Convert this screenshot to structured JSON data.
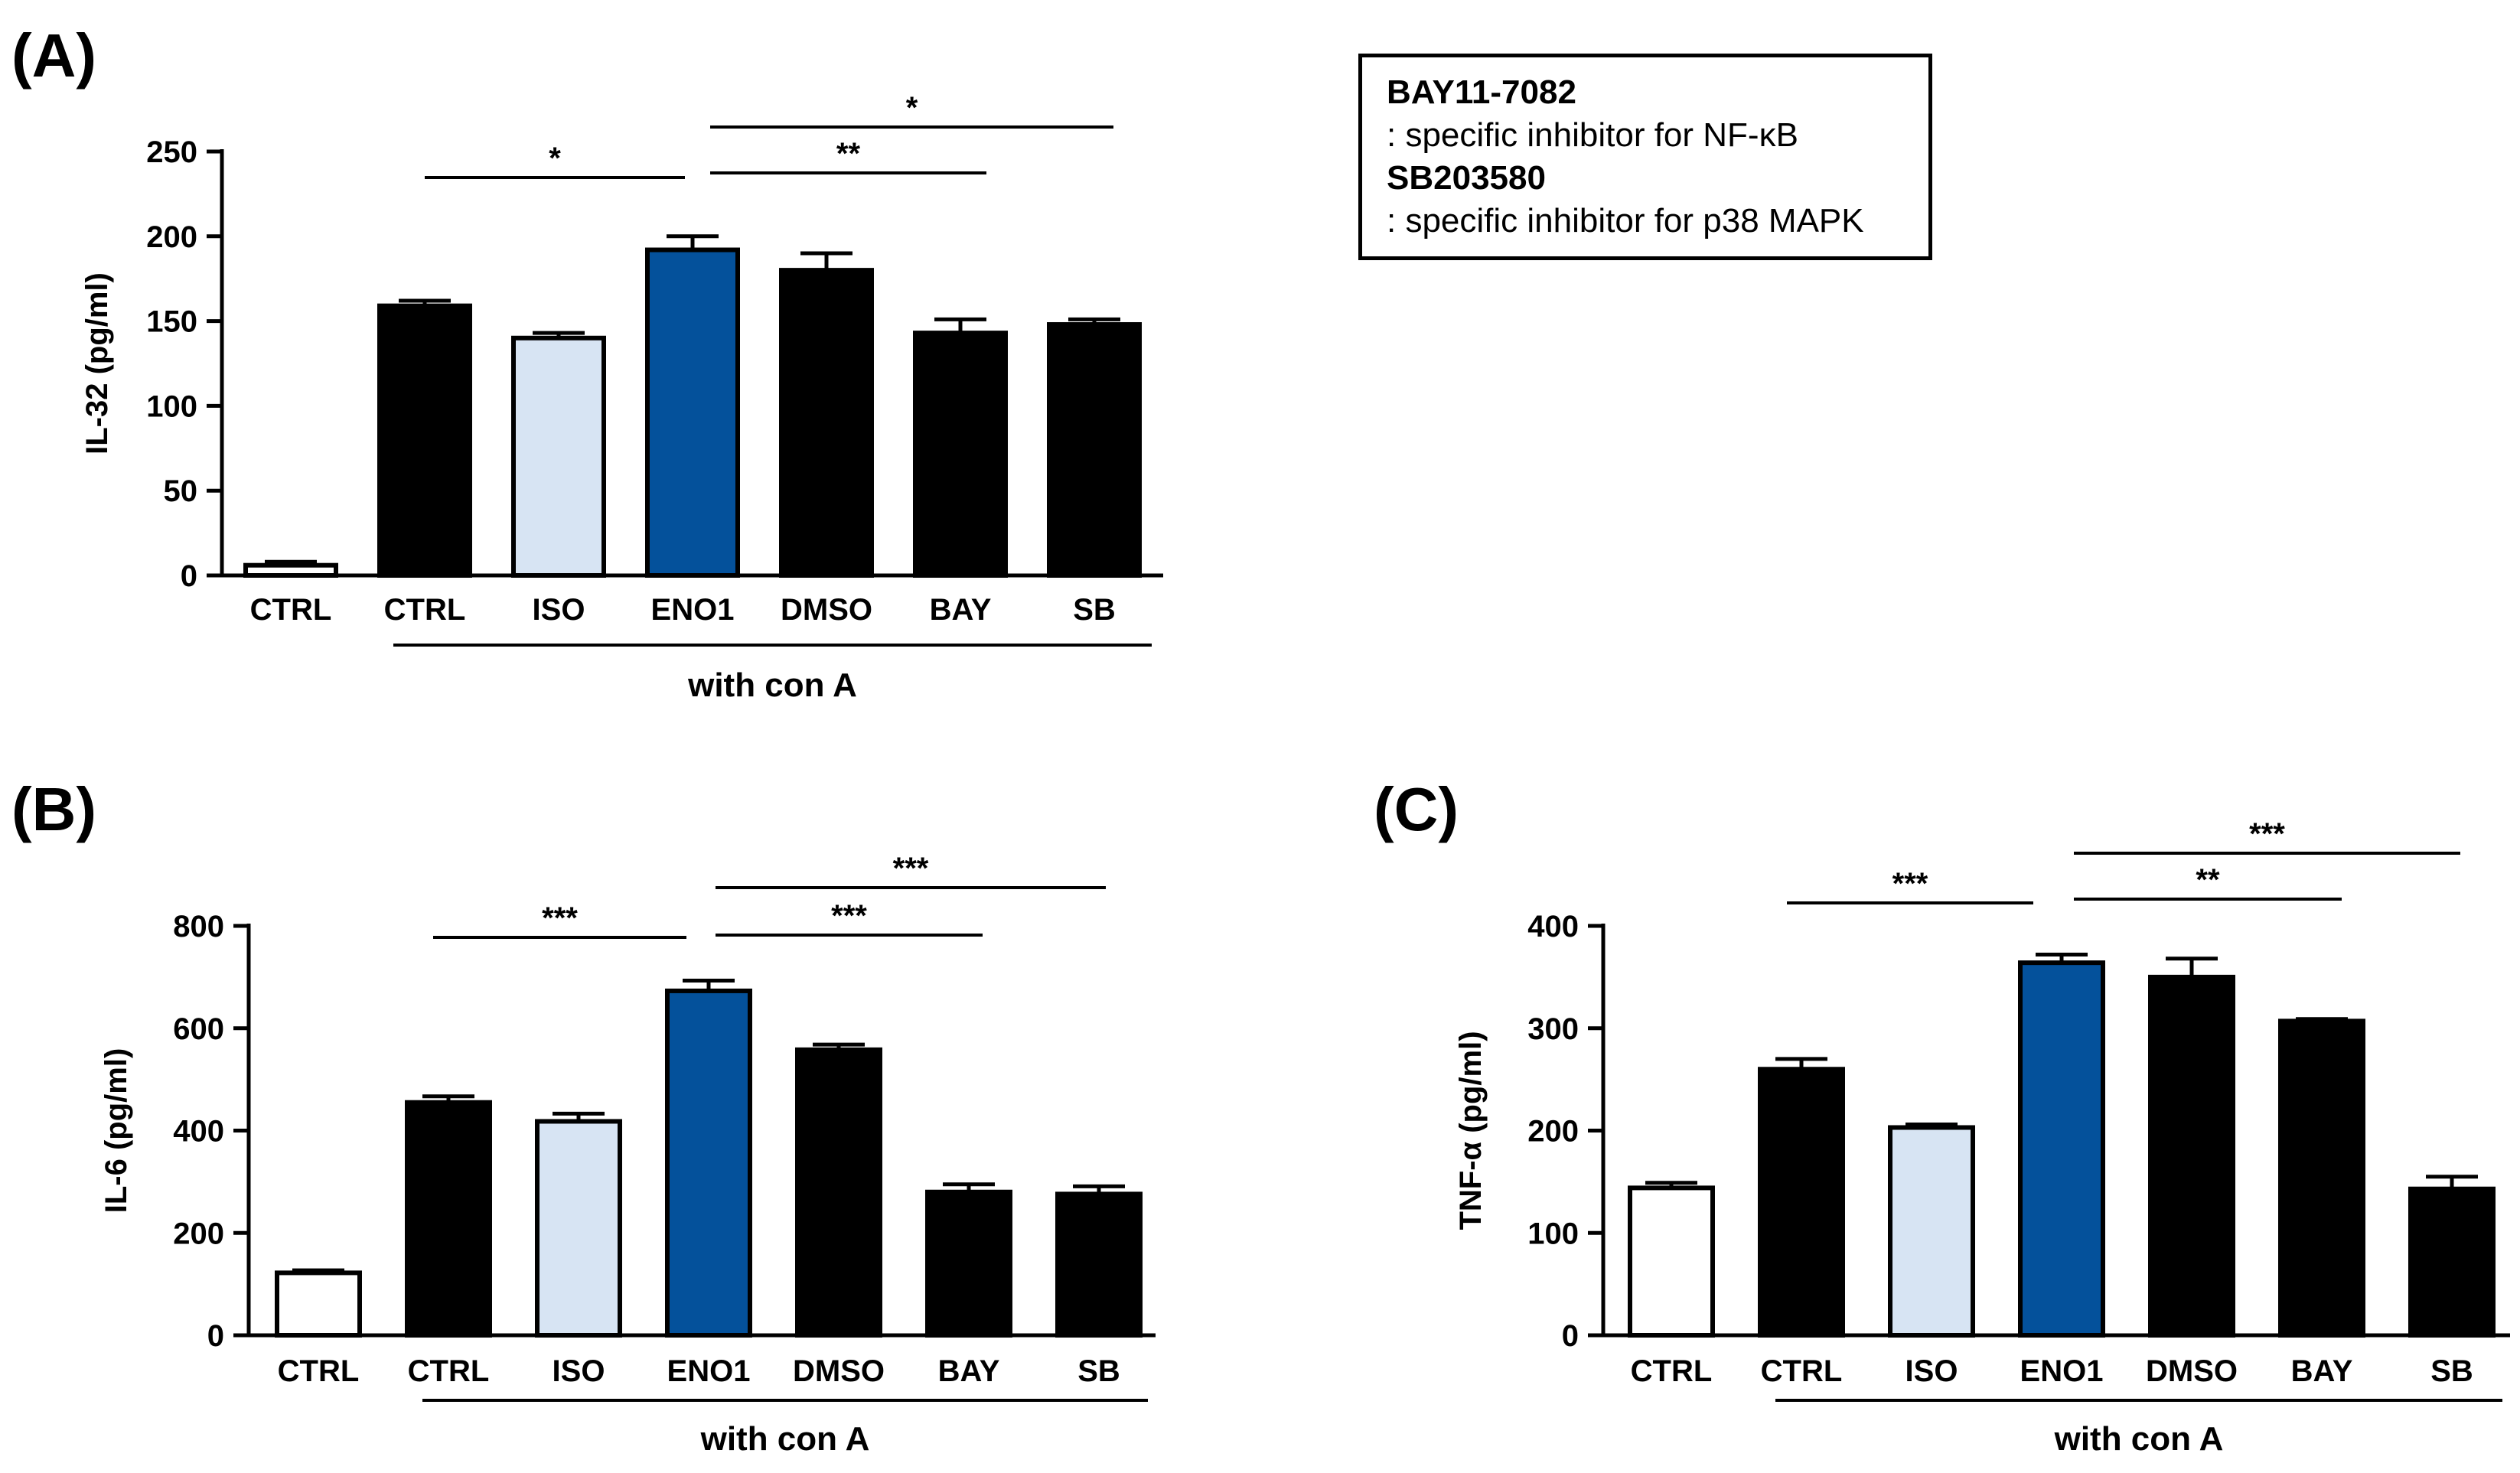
{
  "legend": {
    "line1": "BAY11-7082",
    "line2": ": specific inhibitor for NF-κB",
    "line3": "SB203580",
    "line4": ": specific inhibitor for p38 MAPK"
  },
  "colors": {
    "white_bar": "#ffffff",
    "black_bar": "#000000",
    "light_blue_bar": "#d7e4f3",
    "blue_bar": "#04519b"
  },
  "chart_data": [
    {
      "id": "A",
      "panel_label": "(A)",
      "type": "bar",
      "ylabel": "IL-32 (pg/ml)",
      "ylim": [
        0,
        250
      ],
      "yticks": [
        0,
        50,
        100,
        150,
        200,
        250
      ],
      "categories": [
        "CTRL",
        "CTRL",
        "ISO",
        "ENO1",
        "DMSO",
        "BAY",
        "SB"
      ],
      "values": [
        6,
        159,
        140,
        192,
        180,
        143,
        148
      ],
      "errors": [
        2,
        3,
        3,
        8,
        10,
        8,
        3
      ],
      "fills": [
        "white",
        "black",
        "lightblue",
        "blue",
        "black",
        "black",
        "black"
      ],
      "group_label": "with con A",
      "significance": [
        {
          "from": 1,
          "to": 3,
          "label": "*"
        },
        {
          "from": 3,
          "to": 5,
          "label": "**"
        },
        {
          "from": 3,
          "to": 6,
          "label": "*"
        }
      ]
    },
    {
      "id": "B",
      "panel_label": "(B)",
      "type": "bar",
      "ylabel": "IL-6 (pg/ml)",
      "ylim": [
        0,
        800
      ],
      "yticks": [
        0,
        200,
        400,
        600,
        800
      ],
      "categories": [
        "CTRL",
        "CTRL",
        "ISO",
        "ENO1",
        "DMSO",
        "BAY",
        "SB"
      ],
      "values": [
        122,
        455,
        418,
        673,
        558,
        280,
        276
      ],
      "errors": [
        5,
        12,
        15,
        20,
        10,
        15,
        15
      ],
      "fills": [
        "white",
        "black",
        "lightblue",
        "blue",
        "black",
        "black",
        "black"
      ],
      "group_label": "with con A",
      "significance": [
        {
          "from": 1,
          "to": 3,
          "label": "***"
        },
        {
          "from": 3,
          "to": 5,
          "label": "***"
        },
        {
          "from": 3,
          "to": 6,
          "label": "***"
        }
      ]
    },
    {
      "id": "C",
      "panel_label": "(C)",
      "type": "bar",
      "ylabel": "TNF-α (pg/ml)",
      "ylim": [
        0,
        400
      ],
      "yticks": [
        0,
        100,
        200,
        300,
        400
      ],
      "categories": [
        "CTRL",
        "CTRL",
        "ISO",
        "ENO1",
        "DMSO",
        "BAY",
        "SB"
      ],
      "values": [
        144,
        260,
        203,
        364,
        350,
        307,
        143
      ],
      "errors": [
        5,
        10,
        3,
        8,
        18,
        2,
        12
      ],
      "fills": [
        "white",
        "black",
        "lightblue",
        "blue",
        "black",
        "black",
        "black"
      ],
      "group_label": "with con A",
      "significance": [
        {
          "from": 1,
          "to": 3,
          "label": "***"
        },
        {
          "from": 3,
          "to": 5,
          "label": "**"
        },
        {
          "from": 3,
          "to": 6,
          "label": "***"
        }
      ]
    }
  ]
}
